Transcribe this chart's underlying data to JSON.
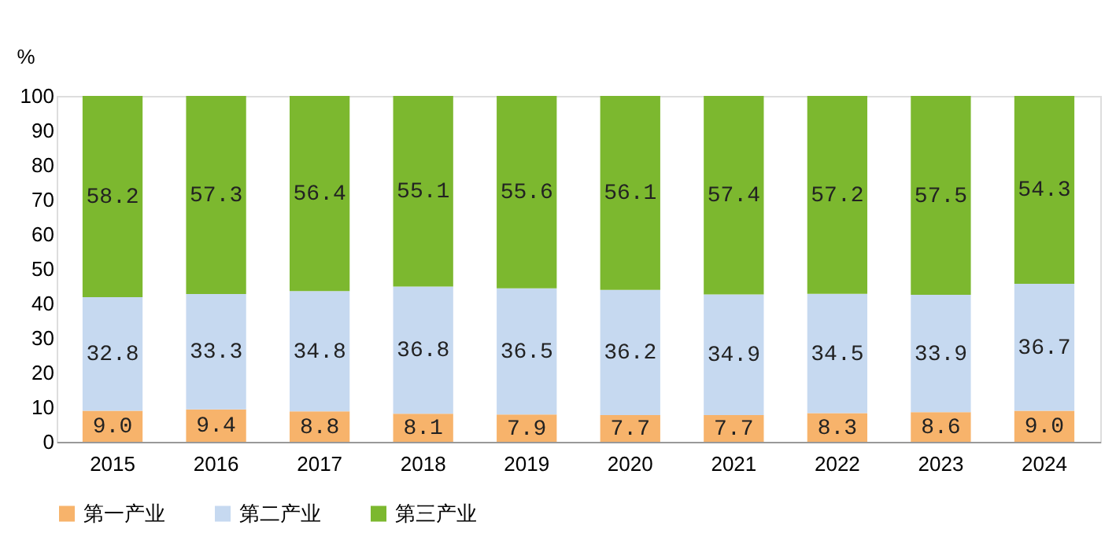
{
  "chart_data": {
    "type": "bar",
    "stacked": true,
    "ylabel": "%",
    "categories": [
      "2015",
      "2016",
      "2017",
      "2018",
      "2019",
      "2020",
      "2021",
      "2022",
      "2023",
      "2024"
    ],
    "series": [
      {
        "name": "第一产业",
        "color": "#f7b36b",
        "values": [
          9.0,
          9.4,
          8.8,
          8.1,
          7.9,
          7.7,
          7.7,
          8.3,
          8.6,
          9.0
        ],
        "value_labels": [
          "9.0",
          "9.4",
          "8.8",
          "8.1",
          "7.9",
          "7.7",
          "7.7",
          "8.3",
          "8.6",
          "9.0"
        ]
      },
      {
        "name": "第二产业",
        "color": "#c6d9f0",
        "values": [
          32.8,
          33.3,
          34.8,
          36.8,
          36.5,
          36.2,
          34.9,
          34.5,
          33.9,
          36.7
        ]
      },
      {
        "name": "第三产业",
        "color": "#7cb82f",
        "values": [
          58.2,
          57.3,
          56.4,
          55.1,
          55.6,
          56.1,
          57.4,
          57.2,
          57.5,
          54.3
        ]
      }
    ],
    "ylim": [
      0,
      100
    ],
    "yticks": [
      0,
      10,
      20,
      30,
      40,
      50,
      60,
      70,
      80,
      90,
      100
    ],
    "grid": false,
    "legend": "bottom",
    "data_labels": true
  }
}
